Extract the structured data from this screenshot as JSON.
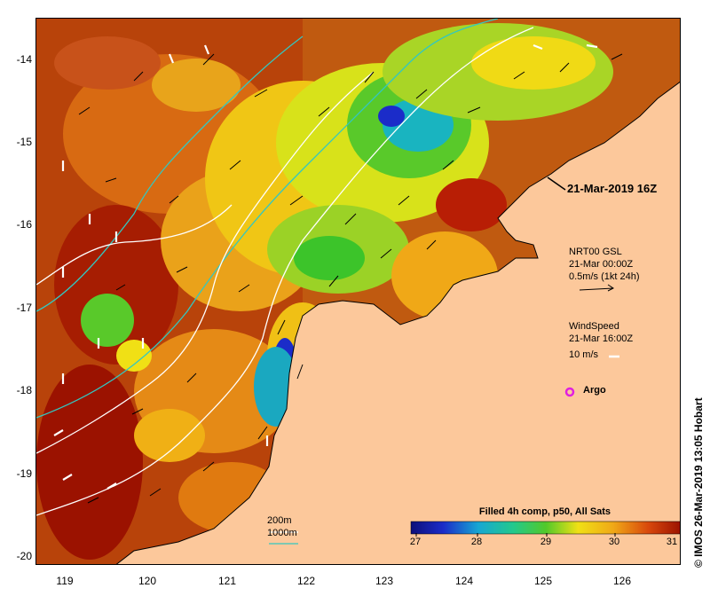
{
  "map": {
    "y_ticks": [
      "-14",
      "-15",
      "-16",
      "-17",
      "-18",
      "-19",
      "-20"
    ],
    "x_ticks": [
      "119",
      "120",
      "121",
      "122",
      "123",
      "124",
      "125",
      "126"
    ],
    "timestamp": "21-Mar-2019 16Z",
    "current_legend": {
      "line1": "NRT00 GSL",
      "line2": "21-Mar 00:00Z",
      "line3": "0.5m/s (1kt 24h)"
    },
    "wind_legend": {
      "line1": "WindSpeed",
      "line2": "21-Mar 16:00Z",
      "line3": "10 m/s"
    },
    "argo_label": "Argo",
    "depth_legend": {
      "d200": "200m",
      "d1000": "1000m"
    },
    "colorbar": {
      "title": "Filled 4h comp, p50, All Sats",
      "ticks": [
        "27",
        "28",
        "29",
        "30",
        "31"
      ]
    },
    "credit": "© IMOS 26-Mar-2019 13:05 Hobart",
    "colors": {
      "land": "#fcc89b",
      "sst_hot": "#a61500",
      "sst_warm": "#e07a10",
      "sst_mid": "#f2e10f",
      "sst_cool": "#2ec41f",
      "sst_cold": "#1b2cc9",
      "isobath_200": "#ffffff",
      "isobath_1000": "#33c7c0",
      "argo": "#e01fe0"
    }
  }
}
